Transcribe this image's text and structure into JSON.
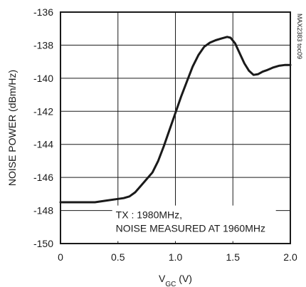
{
  "chart_data": {
    "type": "line",
    "xlabel_main": "V",
    "xlabel_sub": "GC",
    "xlabel_unit": " (V)",
    "ylabel": "NOISE POWER (dBm/Hz)",
    "xlim": [
      0,
      2.0
    ],
    "ylim": [
      -150,
      -136
    ],
    "x_ticks": [
      0,
      0.5,
      1.0,
      1.5,
      2.0
    ],
    "x_tick_labels": [
      "0",
      "0.5",
      "1.0",
      "1.5",
      "2.0"
    ],
    "y_ticks": [
      -136,
      -138,
      -140,
      -142,
      -144,
      -146,
      -148,
      -150
    ],
    "y_tick_labels": [
      "-136",
      "-138",
      "-140",
      "-142",
      "-144",
      "-146",
      "-148",
      "-150"
    ],
    "grid": true,
    "annotation_lines": [
      "TX : 1980MHz,",
      "NOISE MEASURED AT 1960MHz"
    ],
    "side_id": "MAX2383 toc09",
    "line_color": "#1a1a1a",
    "series": [
      {
        "x": [
          0.0,
          0.1,
          0.2,
          0.3,
          0.4,
          0.5,
          0.55,
          0.6,
          0.65,
          0.7,
          0.75,
          0.8,
          0.85,
          0.9,
          0.95,
          1.0,
          1.05,
          1.1,
          1.15,
          1.2,
          1.25,
          1.3,
          1.35,
          1.4,
          1.45,
          1.48,
          1.52,
          1.56,
          1.6,
          1.64,
          1.68,
          1.72,
          1.76,
          1.8,
          1.85,
          1.9,
          1.95,
          2.0
        ],
        "y": [
          -147.5,
          -147.5,
          -147.5,
          -147.5,
          -147.4,
          -147.3,
          -147.25,
          -147.15,
          -146.9,
          -146.5,
          -146.1,
          -145.7,
          -145.0,
          -144.1,
          -143.1,
          -142.1,
          -141.1,
          -140.2,
          -139.3,
          -138.6,
          -138.1,
          -137.85,
          -137.7,
          -137.6,
          -137.5,
          -137.55,
          -137.9,
          -138.5,
          -139.1,
          -139.55,
          -139.8,
          -139.75,
          -139.6,
          -139.5,
          -139.35,
          -139.25,
          -139.2,
          -139.2
        ]
      }
    ]
  }
}
